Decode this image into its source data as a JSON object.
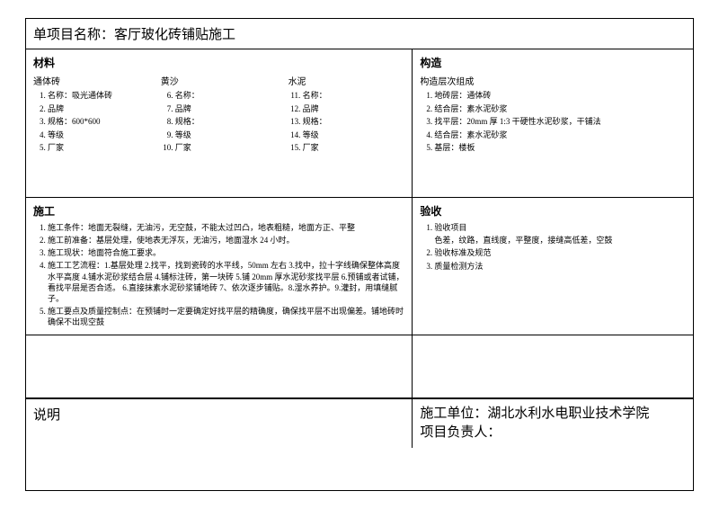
{
  "title": "单项目名称：客厅玻化砖铺贴施工",
  "materials": {
    "heading": "材料",
    "group1": {
      "name": "通体砖",
      "items": [
        "名称：吸光通体砖",
        "品牌",
        "规格：600*600",
        "等级",
        "厂家"
      ]
    },
    "group2": {
      "name": "黄沙",
      "items": [
        "名称：",
        "品牌",
        "规格：",
        "等级",
        "厂家"
      ]
    },
    "group3": {
      "name": "水泥",
      "items": [
        "名称：",
        "品牌",
        "规格：",
        "等级",
        "厂家"
      ]
    }
  },
  "structure": {
    "heading": "构造",
    "sub": "构造层次组成",
    "items": [
      "地砖层：通体砖",
      "结合层：素水泥砂浆",
      "找平层：20mm 厚 1:3 干硬性水泥砂浆，干铺法",
      "结合层：素水泥砂浆",
      "基层：楼板"
    ]
  },
  "construction": {
    "heading": "施工",
    "items": [
      "施工条件：地面无裂缝，无油污，无空鼓，不能太过凹凸，地表粗糙，地面方正、平整",
      "施工前准备：基层处理，使地表无浮灰，无油污，地面湿水 24 小时。",
      "施工现状：地面符合施工要求。",
      "施工工艺流程：1.基层处理 2.找平，找到瓷砖的水平线，50mm 左右 3.找中，拉十字线确保整体高度水平高度 4.铺水泥砂浆结合层 4.铺标注砖，第一块砖 5.铺 20mm 厚水泥砂浆找平层 6.预铺或者试铺，看找平层是否合适。 6.直接抹素水泥砂浆铺地砖 7、依次逐步铺贴。8.湿水养护。9.灌封，用填缝腻子。",
      "施工要点及质量控制点：在预铺时一定要确定好找平层的精确度，确保找平层不出现偏差。铺地砖时确保不出现空鼓"
    ]
  },
  "acceptance": {
    "heading": "验收",
    "items": [
      "验收项目\n色差，纹路，直线度，平整度，接缝高低差，空鼓",
      "验收标准及规范",
      "质量检测方法"
    ]
  },
  "notes": {
    "heading": "说明"
  },
  "footer": {
    "unit": "施工单位：湖北水利水电职业技术学院",
    "person": "项目负责人："
  }
}
